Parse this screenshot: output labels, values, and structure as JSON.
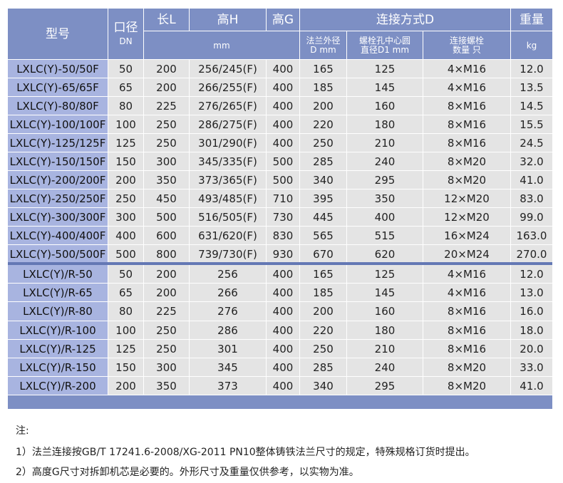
{
  "header": {
    "model": "型号",
    "dn": "口径",
    "dn_unit": "DN",
    "length": "长L",
    "height_h": "高H",
    "height_g": "高G",
    "connection": "连接方式D",
    "weight": "重量",
    "mm_unit": "mm",
    "flange_od_l1": "法兰外径",
    "flange_od_l2": "D mm",
    "bolt_circle_l1": "螺栓孔中心圆",
    "bolt_circle_l2": "直径D1 mm",
    "bolt_count_l1": "连接螺栓",
    "bolt_count_l2": "数量 只",
    "kg_unit": "kg"
  },
  "group1": [
    [
      "LXLC(Y)-50/50F",
      "50",
      "200",
      "256/245(F)",
      "400",
      "165",
      "125",
      "4×M16",
      "12.0"
    ],
    [
      "LXLC(Y)-65/65F",
      "65",
      "200",
      "266/255(F)",
      "400",
      "185",
      "145",
      "4×M16",
      "13.5"
    ],
    [
      "LXLC(Y)-80/80F",
      "80",
      "225",
      "276/265(F)",
      "400",
      "200",
      "160",
      "8×M16",
      "14.5"
    ],
    [
      "LXLC(Y)-100/100F",
      "100",
      "250",
      "286/275(F)",
      "400",
      "220",
      "180",
      "8×M16",
      "15.5"
    ],
    [
      "LXLC(Y)-125/125F",
      "125",
      "250",
      "301/290(F)",
      "400",
      "250",
      "210",
      "8×M16",
      "24.5"
    ],
    [
      "LXLC(Y)-150/150F",
      "150",
      "300",
      "345/335(F)",
      "500",
      "285",
      "240",
      "8×M20",
      "32.0"
    ],
    [
      "LXLC(Y)-200/200F",
      "200",
      "350",
      "373/365(F)",
      "500",
      "340",
      "295",
      "8×M20",
      "41.0"
    ],
    [
      "LXLC(Y)-250/250F",
      "250",
      "450",
      "493/485(F)",
      "710",
      "395",
      "350",
      "12×M20",
      "83.0"
    ],
    [
      "LXLC(Y)-300/300F",
      "300",
      "500",
      "516/505(F)",
      "730",
      "445",
      "400",
      "12×M20",
      "99.0"
    ],
    [
      "LXLC(Y)-400/400F",
      "400",
      "600",
      "631/620(F)",
      "830",
      "565",
      "515",
      "16×M24",
      "163.0"
    ],
    [
      "LXLC(Y)-500/500F",
      "500",
      "800",
      "739/730(F)",
      "930",
      "670",
      "620",
      "20×M24",
      "270.0"
    ]
  ],
  "group2": [
    [
      "LXLC(Y)/R-50",
      "50",
      "200",
      "256",
      "400",
      "165",
      "125",
      "4×M16",
      "12.0"
    ],
    [
      "LXLC(Y)/R-65",
      "65",
      "200",
      "266",
      "400",
      "185",
      "145",
      "4×M16",
      "13.0"
    ],
    [
      "LXLC(Y)/R-80",
      "80",
      "225",
      "276",
      "400",
      "200",
      "160",
      "8×M16",
      "16.0"
    ],
    [
      "LXLC(Y)/R-100",
      "100",
      "250",
      "286",
      "400",
      "220",
      "180",
      "8×M16",
      "18.0"
    ],
    [
      "LXLC(Y)/R-125",
      "125",
      "250",
      "301",
      "400",
      "250",
      "210",
      "8×M16",
      "20.0"
    ],
    [
      "LXLC(Y)/R-150",
      "150",
      "300",
      "345",
      "400",
      "285",
      "240",
      "8×M20",
      "33.0"
    ],
    [
      "LXLC(Y)/R-200",
      "200",
      "350",
      "373",
      "400",
      "340",
      "295",
      "8×M20",
      "41.0"
    ]
  ],
  "notes": {
    "title": "注:",
    "n1": "1）法兰连接按GB/T 17241.6-2008/XG-2011 PN10整体铸铁法兰尺寸的规定，特殊规格订货时提出。",
    "n2": "2）高度G尺寸对拆卸机芯是必要的。外形尺寸及重量仅供参考，以实物为准。"
  },
  "colors": {
    "header_bg": "#7d8fc4",
    "model_bg": "#a8b4e0",
    "data_bg": "#e4e4e4",
    "divider": "#6478b4"
  }
}
